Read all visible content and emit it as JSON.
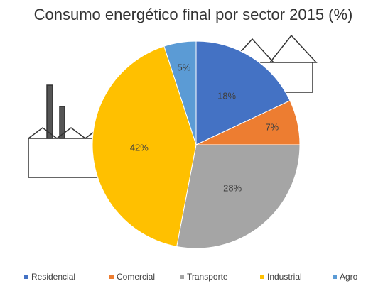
{
  "chart_data": {
    "type": "pie",
    "title": "Consumo energético final por sector 2015 (%)",
    "categories": [
      "Residencial",
      "Comercial",
      "Transporte",
      "Industrial",
      "Agro"
    ],
    "values": [
      18,
      7,
      28,
      42,
      5
    ],
    "value_labels": [
      "18%",
      "7%",
      "28%",
      "42%",
      "5%"
    ],
    "colors": [
      "#4472c4",
      "#ed7d31",
      "#a5a5a5",
      "#ffc000",
      "#5b9bd5"
    ]
  }
}
